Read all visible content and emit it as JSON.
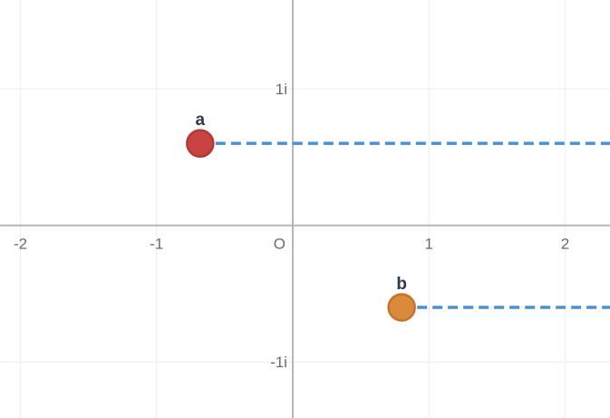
{
  "plane": {
    "x_range": [
      -2.15,
      2.33
    ],
    "y_range": [
      -1.41,
      1.65
    ],
    "grid_step": 1,
    "minor_grid": false,
    "origin_label": "O",
    "x_tick_labels": [
      {
        "value": -2,
        "label": "-2"
      },
      {
        "value": -1,
        "label": "-1"
      },
      {
        "value": 1,
        "label": "1"
      },
      {
        "value": 2,
        "label": "2"
      }
    ],
    "y_tick_labels": [
      {
        "value": 1,
        "label": "1i"
      },
      {
        "value": -1,
        "label": "-1i"
      }
    ]
  },
  "points": [
    {
      "id": "a",
      "label": "a",
      "re": -0.68,
      "im": 0.6,
      "fill": "#c74440",
      "stroke": "#b23a36",
      "dashed_ray_color": "#4a90d9"
    },
    {
      "id": "b",
      "label": "b",
      "re": 0.8,
      "im": -0.6,
      "fill": "#d98a3a",
      "stroke": "#c7722a",
      "dashed_ray_color": "#4a90d9"
    }
  ],
  "colors": {
    "axis": "#b5b5b5",
    "grid": "#eeeeee"
  }
}
